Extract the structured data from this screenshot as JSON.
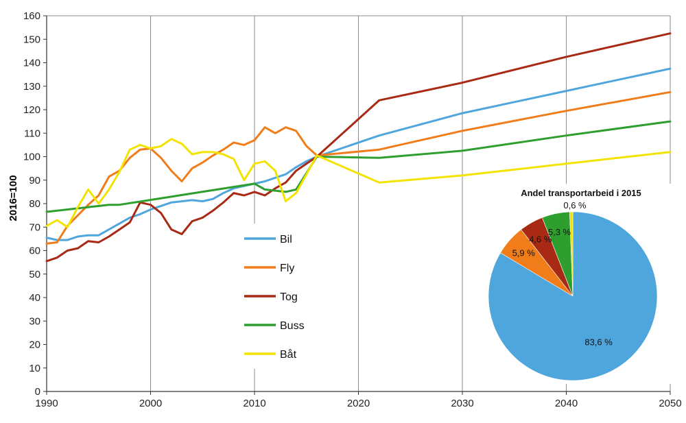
{
  "chart_data": [
    {
      "type": "line",
      "ylabel": "2016=100",
      "xlabel": "",
      "xlim": [
        1990,
        2050
      ],
      "ylim": [
        0,
        160
      ],
      "x_ticks": [
        "1990",
        "2000",
        "2010",
        "2020",
        "2030",
        "2040",
        "2050"
      ],
      "y_ticks": [
        "0",
        "10",
        "20",
        "30",
        "40",
        "50",
        "60",
        "70",
        "80",
        "90",
        "100",
        "110",
        "120",
        "130",
        "140",
        "150",
        "160"
      ],
      "grid": "vertical",
      "legend_placement": "center",
      "series": [
        {
          "name": "Bil",
          "color": "#4ea6dc",
          "x": [
            1990,
            1991,
            1992,
            1993,
            1994,
            1995,
            1996,
            1997,
            1998,
            1999,
            2000,
            2001,
            2002,
            2003,
            2004,
            2005,
            2006,
            2007,
            2008,
            2009,
            2010,
            2011,
            2012,
            2013,
            2014,
            2015,
            2016,
            2022,
            2030,
            2040,
            2050
          ],
          "y": [
            65.5,
            64.5,
            64.5,
            66,
            66.5,
            66.5,
            69,
            71.5,
            74,
            75.5,
            77.5,
            79,
            80.5,
            81,
            81.5,
            81,
            82,
            84.5,
            86.5,
            87.5,
            88.5,
            89.5,
            91,
            92.5,
            95.5,
            98,
            100,
            109,
            118.5,
            128,
            137.5
          ]
        },
        {
          "name": "Fly",
          "color": "#f07c1a",
          "x": [
            1990,
            1991,
            1992,
            1993,
            1994,
            1995,
            1996,
            1997,
            1998,
            1999,
            2000,
            2001,
            2002,
            2003,
            2004,
            2005,
            2006,
            2007,
            2008,
            2009,
            2010,
            2011,
            2012,
            2013,
            2014,
            2015,
            2016,
            2022,
            2030,
            2040,
            2050
          ],
          "y": [
            63,
            63.5,
            70.5,
            75,
            79.5,
            83.5,
            91.5,
            94,
            99.5,
            103,
            103.5,
            99.5,
            94,
            89.5,
            95,
            97.5,
            100.5,
            103,
            106,
            105,
            107,
            112.5,
            110,
            112.5,
            111,
            104.5,
            100.5,
            103,
            111,
            119.5,
            127.5
          ]
        },
        {
          "name": "Tog",
          "color": "#a82a14",
          "x": [
            1990,
            1991,
            1992,
            1993,
            1994,
            1995,
            1996,
            1997,
            1998,
            1999,
            2000,
            2001,
            2002,
            2003,
            2004,
            2005,
            2006,
            2007,
            2008,
            2009,
            2010,
            2011,
            2012,
            2013,
            2014,
            2015,
            2016,
            2022,
            2030,
            2040,
            2050
          ],
          "y": [
            55.5,
            57,
            60,
            61,
            64,
            63.5,
            66,
            69,
            72,
            80.5,
            79.5,
            76,
            69,
            67,
            72.5,
            74,
            77,
            80.5,
            84.5,
            83.5,
            85,
            83.5,
            86.5,
            89,
            94,
            97,
            100,
            124,
            131.5,
            142.5,
            152.5
          ]
        },
        {
          "name": "Buss",
          "color": "#2e9e2e",
          "x": [
            1990,
            1996,
            1997,
            2010,
            2011,
            2013,
            2014,
            2015,
            2016,
            2022,
            2030,
            2040,
            2050
          ],
          "y": [
            76.5,
            79.5,
            79.5,
            88.5,
            86,
            85,
            86,
            93,
            100,
            99.5,
            102.5,
            109,
            115
          ]
        },
        {
          "name": "Båt",
          "color": "#f2e400",
          "x": [
            1990,
            1991,
            1992,
            1993,
            1994,
            1995,
            1996,
            1997,
            1998,
            1999,
            2000,
            2001,
            2002,
            2003,
            2004,
            2005,
            2006,
            2007,
            2008,
            2009,
            2010,
            2011,
            2012,
            2013,
            2014,
            2015,
            2016,
            2022,
            2030,
            2040,
            2050
          ],
          "y": [
            70.5,
            73,
            70,
            78.5,
            86,
            80,
            86,
            93.5,
            103,
            105,
            103.5,
            104.5,
            107.5,
            105.5,
            101,
            102,
            102,
            101,
            99,
            90,
            97,
            98,
            94,
            81,
            84.5,
            92.5,
            100.5,
            89,
            92,
            97,
            102
          ]
        }
      ]
    },
    {
      "type": "pie",
      "title": "Andel transportarbeid i 2015",
      "slices": [
        {
          "name": "Bil",
          "value": 83.6,
          "label": "83,6 %",
          "color": "#4ea6dc"
        },
        {
          "name": "Fly",
          "value": 5.9,
          "label": "5,9 %",
          "color": "#f07c1a"
        },
        {
          "name": "Tog",
          "value": 4.6,
          "label": "4,6 %",
          "color": "#a82a14"
        },
        {
          "name": "Buss",
          "value": 5.3,
          "label": "5,3 %",
          "color": "#2e9e2e"
        },
        {
          "name": "Båt",
          "value": 0.6,
          "label": "0,6 %",
          "color": "#f2e400"
        }
      ]
    }
  ]
}
